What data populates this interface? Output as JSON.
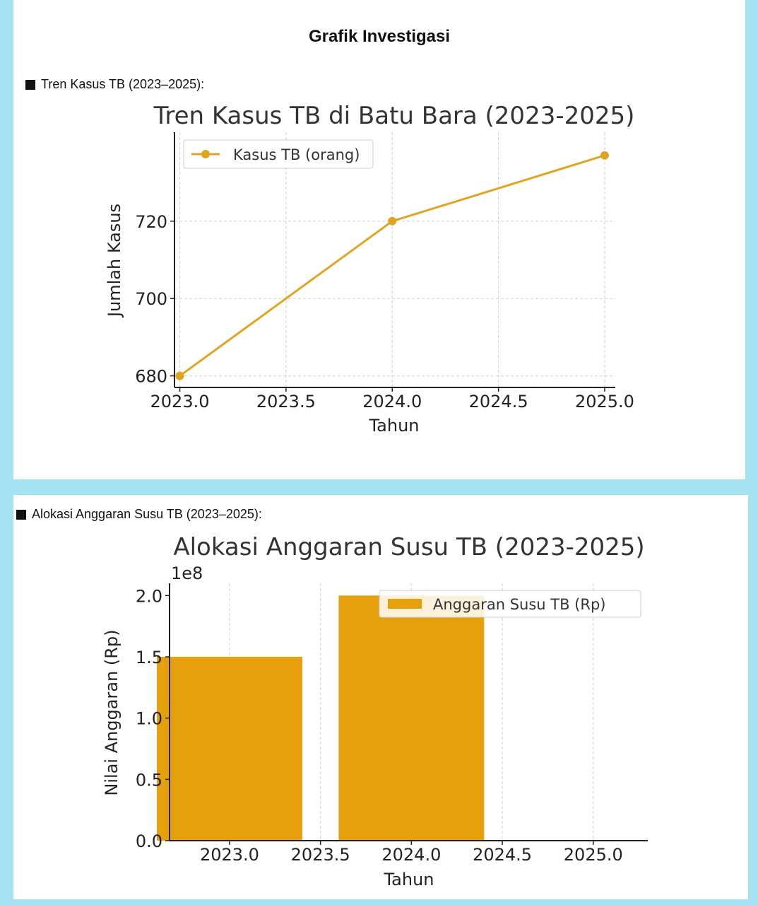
{
  "page": {
    "heading": "Grafik Investigasi",
    "section1_label": "Tren Kasus TB (2023–2025):",
    "section2_label": "Alokasi Anggaran Susu TB (2023–2025):"
  },
  "colors": {
    "accent": "#e5a00b",
    "line": "#e0a520",
    "background": "#a6e3f2"
  },
  "chart_data": [
    {
      "type": "line",
      "title": "Tren Kasus TB di Batu Bara (2023-2025)",
      "xlabel": "Tahun",
      "ylabel": "Jumlah Kasus",
      "x": [
        2023.0,
        2024.0,
        2025.0
      ],
      "series": [
        {
          "name": "Kasus TB (orang)",
          "values": [
            680,
            720,
            737
          ]
        }
      ],
      "xticks": [
        "2023.0",
        "2023.5",
        "2024.0",
        "2024.5",
        "2025.0"
      ],
      "yticks": [
        "680",
        "700",
        "720"
      ],
      "xlim": [
        2022.975,
        2025.05
      ],
      "ylim": [
        677,
        743
      ],
      "grid": true,
      "legend": "upper-left"
    },
    {
      "type": "bar",
      "title": "Alokasi Anggaran Susu TB (2023-2025)",
      "xlabel": "Tahun",
      "ylabel": "Nilai Anggaran (Rp)",
      "offset_label": "1e8",
      "x": [
        2023.0,
        2024.0,
        2025.0
      ],
      "series": [
        {
          "name": "Anggaran Susu TB (Rp)",
          "values": [
            150000000,
            200000000,
            0
          ]
        }
      ],
      "xticks": [
        "2023.0",
        "2023.5",
        "2024.0",
        "2024.5",
        "2025.0"
      ],
      "yticks": [
        "0.0",
        "0.5",
        "1.0",
        "1.5",
        "2.0"
      ],
      "xlim": [
        2022.67,
        2025.3
      ],
      "ylim": [
        0,
        210000000
      ],
      "grid": true,
      "legend": "upper-right"
    }
  ]
}
